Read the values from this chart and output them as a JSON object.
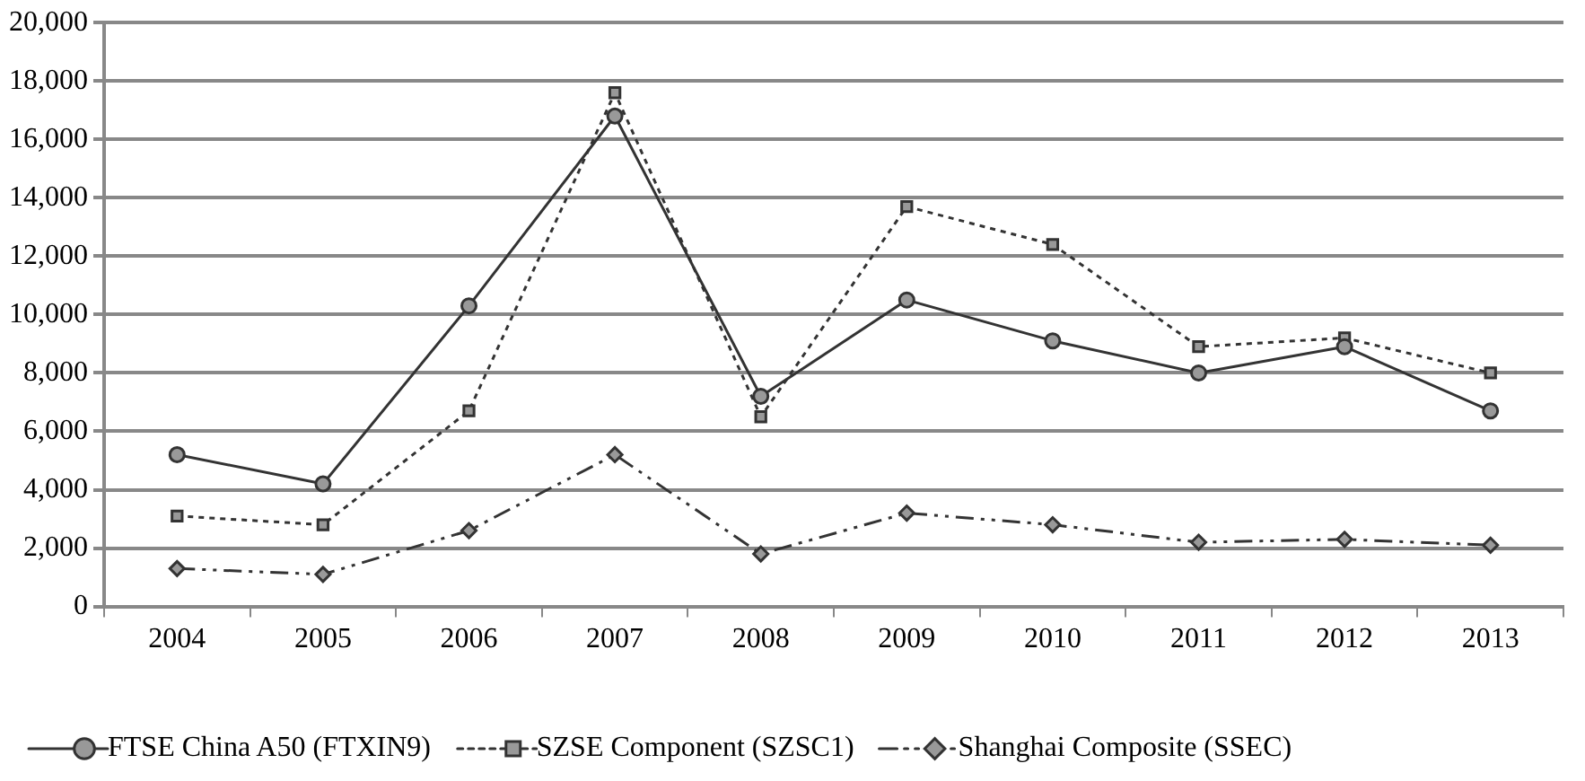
{
  "chart_data": {
    "type": "line",
    "categories": [
      "2004",
      "2005",
      "2006",
      "2007",
      "2008",
      "2009",
      "2010",
      "2011",
      "2012",
      "2013"
    ],
    "series": [
      {
        "name": "FTSE China A50 (FTXIN9)",
        "color": "#333333",
        "marker": "circle",
        "line_style": "solid",
        "values": [
          5200,
          4200,
          10300,
          16800,
          7200,
          10500,
          9100,
          8000,
          8900,
          6700
        ]
      },
      {
        "name": "SZSE Component (SZSC1)",
        "color": "#333333",
        "marker": "square",
        "line_style": "dotted",
        "values": [
          3100,
          2800,
          6700,
          17600,
          6500,
          13700,
          12400,
          8900,
          9200,
          8000
        ]
      },
      {
        "name": "Shanghai Composite (SSEC)",
        "color": "#333333",
        "marker": "diamond",
        "line_style": "dashed",
        "values": [
          1300,
          1100,
          2600,
          5200,
          1800,
          3200,
          2800,
          2200,
          2300,
          2100
        ]
      }
    ],
    "ylim": [
      0,
      20000
    ],
    "yticks": [
      0,
      {
        "value": 2000,
        "label": "2,000"
      },
      {
        "value": 4000,
        "label": "4,000"
      },
      {
        "value": 6000,
        "label": "6,000"
      },
      {
        "value": 8000,
        "label": "8,000"
      },
      {
        "value": 10000,
        "label": "10,000"
      },
      {
        "value": 12000,
        "label": "12,000"
      },
      {
        "value": 14000,
        "label": "14,000"
      },
      {
        "value": 16000,
        "label": "16,000"
      },
      {
        "value": 18000,
        "label": "18,000"
      },
      {
        "value": 20000,
        "label": "20,000"
      }
    ],
    "grid": "y",
    "legend": "bottom"
  }
}
